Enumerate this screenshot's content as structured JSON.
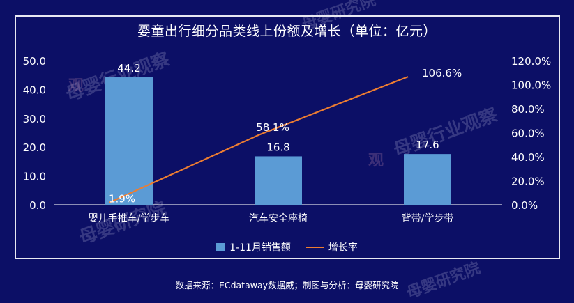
{
  "header": {
    "title": "婴童出行细分品类线上份额及增长（单位：亿元）"
  },
  "footer": {
    "source": "数据来源：ECdataway数据威；制图与分析：母婴研究院"
  },
  "watermarks": {
    "wm1": "母婴研究院",
    "wm2": "母婴行业观察",
    "wm3": "母婴行业观察",
    "wm4": "母婴研究院",
    "wm5": "母婴研究院",
    "wm6": "观",
    "wm7": "观"
  },
  "colors": {
    "background": "#0c0f66",
    "bar": "#5b9bd5",
    "line": "#ed7d31",
    "text": "#ffffff"
  },
  "chart_data": {
    "type": "bar+line",
    "categories": [
      "婴儿手推车/学步车",
      "汽车安全座椅",
      "背带/学步带"
    ],
    "series": [
      {
        "name": "1-11月销售额",
        "type": "bar",
        "axis": "left",
        "values": [
          44.2,
          16.8,
          17.6
        ],
        "labels": [
          "44.2",
          "16.8",
          "17.6"
        ]
      },
      {
        "name": "增长率",
        "type": "line",
        "axis": "right",
        "values": [
          1.9,
          58.1,
          106.6
        ],
        "labels": [
          "1.9%",
          "58.1%",
          "106.6%"
        ]
      }
    ],
    "y_left": {
      "min": 0,
      "max": 50,
      "ticks": [
        "0.0",
        "10.0",
        "20.0",
        "30.0",
        "40.0",
        "50.0"
      ]
    },
    "y_right": {
      "min": 0,
      "max": 120,
      "ticks": [
        "0.0%",
        "20.0%",
        "40.0%",
        "60.0%",
        "80.0%",
        "100.0%",
        "120.0%"
      ]
    },
    "legend": "bottom",
    "grid": false
  }
}
